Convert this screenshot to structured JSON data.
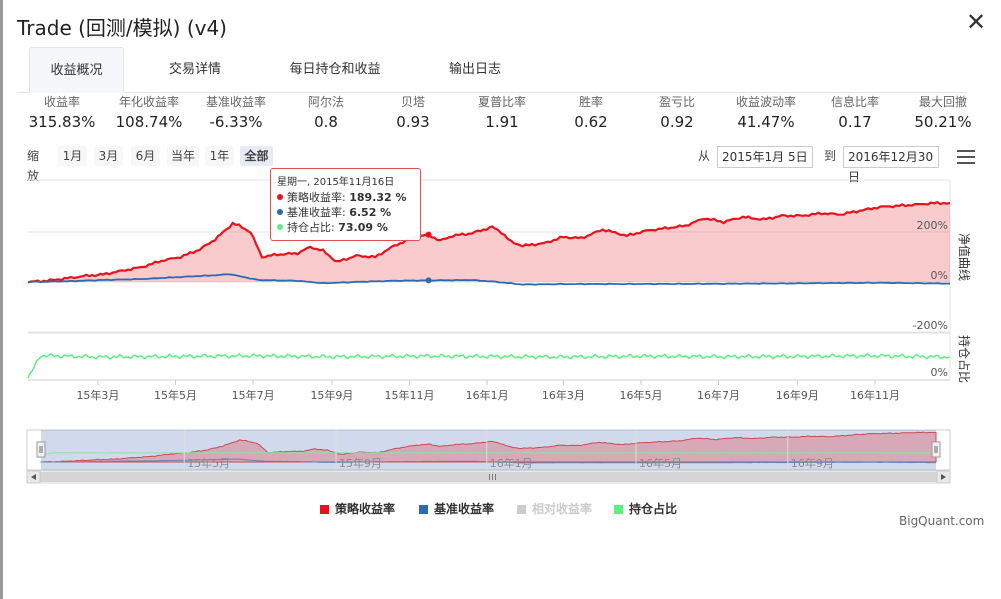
{
  "window": {
    "title": "Trade (回测/模拟) (v4)",
    "close_glyph": "✕"
  },
  "tabs": [
    {
      "label": "收益概况",
      "active": true
    },
    {
      "label": "交易详情"
    },
    {
      "label": "每日持仓和收益"
    },
    {
      "label": "输出日志"
    }
  ],
  "metrics": [
    {
      "label": "收益率",
      "value": "315.83%"
    },
    {
      "label": "年化收益率",
      "value": "108.74%"
    },
    {
      "label": "基准收益率",
      "value": "-6.33%"
    },
    {
      "label": "阿尔法",
      "value": "0.8"
    },
    {
      "label": "贝塔",
      "value": "0.93"
    },
    {
      "label": "夏普比率",
      "value": "1.91"
    },
    {
      "label": "胜率",
      "value": "0.62"
    },
    {
      "label": "盈亏比",
      "value": "0.92"
    },
    {
      "label": "收益波动率",
      "value": "41.47%"
    },
    {
      "label": "信息比率",
      "value": "0.17"
    },
    {
      "label": "最大回撤",
      "value": "50.21%"
    }
  ],
  "zoom": {
    "label": "缩放",
    "buttons": [
      "1月",
      "3月",
      "6月",
      "当年",
      "1年",
      "全部"
    ],
    "selected": "全部"
  },
  "range": {
    "from_label": "从",
    "from": "2015年1月 5日",
    "to_label": "到",
    "to": "2016年12月30日"
  },
  "icons": {
    "menu": "hamburger-menu-icon"
  },
  "tooltip": {
    "date": "星期一, 2015年11月16日",
    "rows": [
      {
        "name": "策略收益率",
        "value": "189.32 %",
        "color": "#e8121b"
      },
      {
        "name": "基准收益率",
        "value": "6.52 %",
        "color": "#2d6bb0"
      },
      {
        "name": "持仓占比",
        "value": "73.09 %",
        "color": "#5cf07e"
      }
    ]
  },
  "legend": [
    {
      "name": "策略收益率",
      "color": "#e8121b",
      "enabled": true
    },
    {
      "name": "基准收益率",
      "color": "#2d6bb0",
      "enabled": true
    },
    {
      "name": "相对收益率",
      "color": "#cccccc",
      "enabled": false
    },
    {
      "name": "持仓占比",
      "color": "#5cf07e",
      "enabled": true
    }
  ],
  "credit": "BigQuant.com",
  "chart_data": {
    "type": "line",
    "x_range": [
      "2015-01-05",
      "2016-12-30"
    ],
    "x_ticks": [
      "15年3月",
      "15年5月",
      "15年7月",
      "15年9月",
      "15年11月",
      "16年1月",
      "16年3月",
      "16年5月",
      "16年7月",
      "16年9月",
      "16年11月"
    ],
    "navigator_ticks": [
      "15年5月",
      "15年9月",
      "16年1月",
      "16年5月",
      "16年9月"
    ],
    "panes": [
      {
        "ylabel": "净值曲线",
        "y_ticks": [
          "-200%",
          "0%",
          "200%"
        ],
        "ylim": [
          -200,
          400
        ]
      },
      {
        "ylabel": "持仓占比",
        "y_ticks": [
          "0%"
        ],
        "ylim": [
          0,
          100
        ]
      }
    ],
    "series": [
      {
        "name": "策略收益率",
        "x": [
          "2015-01-05",
          "2015-01-20",
          "2015-02-05",
          "2015-02-20",
          "2015-03-05",
          "2015-03-20",
          "2015-04-05",
          "2015-04-20",
          "2015-05-05",
          "2015-05-20",
          "2015-06-01",
          "2015-06-10",
          "2015-06-15",
          "2015-06-20",
          "2015-06-29",
          "2015-07-08",
          "2015-07-20",
          "2015-08-05",
          "2015-08-15",
          "2015-08-25",
          "2015-09-05",
          "2015-09-20",
          "2015-10-05",
          "2015-10-20",
          "2015-11-05",
          "2015-11-16",
          "2015-11-25",
          "2015-12-05",
          "2015-12-20",
          "2016-01-05",
          "2016-01-12",
          "2016-01-20",
          "2016-01-29",
          "2016-02-15",
          "2016-03-01",
          "2016-03-15",
          "2016-04-01",
          "2016-04-20",
          "2016-05-05",
          "2016-05-20",
          "2016-06-05",
          "2016-06-20",
          "2016-07-05",
          "2016-07-20",
          "2016-08-05",
          "2016-08-20",
          "2016-09-05",
          "2016-09-20",
          "2016-10-05",
          "2016-10-20",
          "2016-11-05",
          "2016-11-20",
          "2016-12-05",
          "2016-12-15",
          "2016-12-30"
        ],
        "values": [
          0,
          5,
          15,
          25,
          30,
          45,
          60,
          85,
          100,
          130,
          170,
          210,
          235,
          225,
          200,
          100,
          110,
          115,
          140,
          125,
          80,
          105,
          100,
          145,
          180,
          189,
          165,
          185,
          195,
          220,
          200,
          160,
          145,
          155,
          180,
          175,
          210,
          185,
          205,
          215,
          225,
          255,
          240,
          260,
          250,
          265,
          265,
          275,
          270,
          285,
          300,
          305,
          310,
          315,
          316
        ]
      },
      {
        "name": "基准收益率",
        "x": [
          "2015-01-05",
          "2015-02-05",
          "2015-03-05",
          "2015-04-05",
          "2015-05-05",
          "2015-06-05",
          "2015-06-12",
          "2015-07-05",
          "2015-08-05",
          "2015-08-25",
          "2015-09-20",
          "2015-10-20",
          "2015-11-16",
          "2015-12-20",
          "2016-01-05",
          "2016-01-29",
          "2016-03-05",
          "2016-05-05",
          "2016-07-05",
          "2016-09-05",
          "2016-11-05",
          "2016-12-30"
        ],
        "values": [
          0,
          3,
          8,
          12,
          20,
          28,
          32,
          8,
          5,
          -5,
          0,
          5,
          6.5,
          8,
          2,
          -10,
          -8,
          -8,
          -7,
          -5,
          -3,
          -6.3
        ]
      },
      {
        "name": "持仓占比",
        "x": [
          "2015-01-05",
          "2015-01-15",
          "2015-03-01",
          "2015-05-01",
          "2015-07-01",
          "2015-09-01",
          "2015-11-16",
          "2016-01-01",
          "2016-03-01",
          "2016-05-01",
          "2016-07-01",
          "2016-09-01",
          "2016-11-01",
          "2016-12-30"
        ],
        "values": [
          0,
          75,
          70,
          72,
          74,
          71,
          73.09,
          72,
          70,
          73,
          71,
          72,
          74,
          70
        ]
      }
    ]
  }
}
